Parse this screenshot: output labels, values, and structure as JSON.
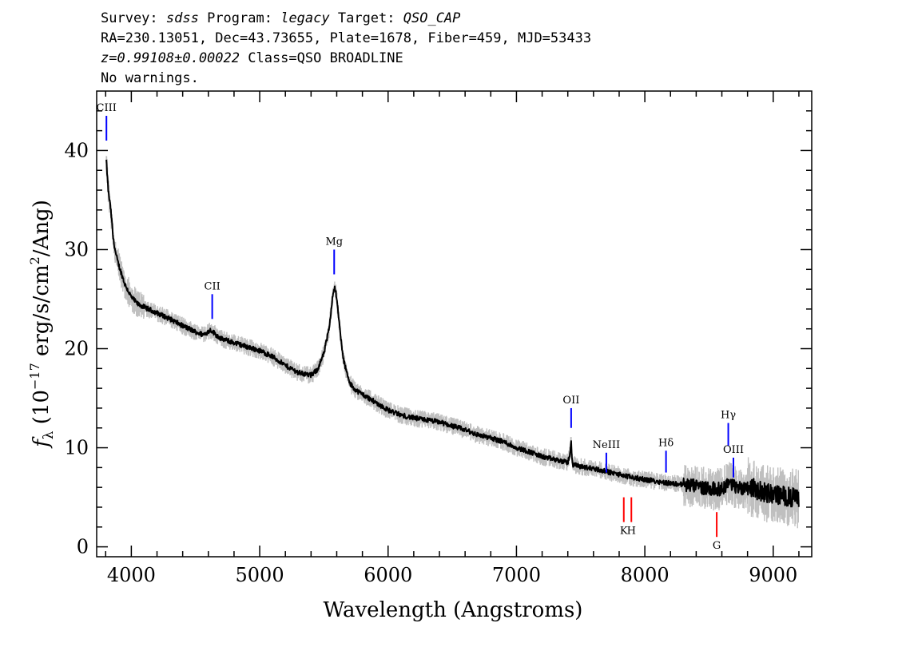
{
  "header": {
    "line1": {
      "survey_label": "Survey: ",
      "survey": "sdss",
      "program_label": " Program: ",
      "program": "legacy",
      "target_label": " Target: ",
      "target": "QSO_CAP"
    },
    "line2": "RA=230.13051, Dec=43.73655, Plate=1678, Fiber=459, MJD=53433",
    "line3": {
      "z": "z=0.99108±0.00022",
      "class": " Class=QSO BROADLINE"
    },
    "line4": "No warnings."
  },
  "chart_data": {
    "type": "line",
    "xlabel": "Wavelength (Angstroms)",
    "ylabel": {
      "prefix": "f",
      "sub": "λ",
      "open": " (10",
      "exp": "−17",
      "mid": " erg/s/cm",
      "exp2": "2",
      "close": "/Ang)"
    },
    "xlim": [
      3730,
      9300
    ],
    "ylim": [
      -1,
      46
    ],
    "x_ticks": [
      4000,
      5000,
      6000,
      7000,
      8000,
      9000
    ],
    "y_ticks": [
      0,
      10,
      20,
      30,
      40
    ],
    "x_tick_labels": [
      "4000",
      "5000",
      "6000",
      "7000",
      "8000",
      "9000"
    ],
    "y_tick_labels": [
      "0",
      "10",
      "20",
      "30",
      "40"
    ],
    "grid": false,
    "series": [
      {
        "role": "flux",
        "color": "#000000",
        "points": [
          [
            3805,
            39
          ],
          [
            3820,
            36
          ],
          [
            3840,
            34
          ],
          [
            3860,
            31
          ],
          [
            3880,
            29.5
          ],
          [
            3900,
            28.5
          ],
          [
            3950,
            26.5
          ],
          [
            4000,
            25.2
          ],
          [
            4050,
            24.5
          ],
          [
            4100,
            24.2
          ],
          [
            4200,
            23.6
          ],
          [
            4300,
            23.0
          ],
          [
            4400,
            22.3
          ],
          [
            4500,
            21.7
          ],
          [
            4560,
            21.4
          ],
          [
            4620,
            21.9
          ],
          [
            4660,
            21.4
          ],
          [
            4700,
            21.0
          ],
          [
            4800,
            20.6
          ],
          [
            4900,
            20.2
          ],
          [
            5000,
            19.8
          ],
          [
            5100,
            19.2
          ],
          [
            5200,
            18.3
          ],
          [
            5300,
            17.6
          ],
          [
            5400,
            17.3
          ],
          [
            5450,
            17.9
          ],
          [
            5500,
            19.5
          ],
          [
            5540,
            22.0
          ],
          [
            5570,
            25.5
          ],
          [
            5585,
            26.3
          ],
          [
            5600,
            25.0
          ],
          [
            5620,
            22.5
          ],
          [
            5650,
            19.0
          ],
          [
            5700,
            16.5
          ],
          [
            5750,
            15.8
          ],
          [
            5800,
            15.4
          ],
          [
            5900,
            14.6
          ],
          [
            6000,
            13.8
          ],
          [
            6100,
            13.3
          ],
          [
            6200,
            13.0
          ],
          [
            6300,
            12.8
          ],
          [
            6400,
            12.6
          ],
          [
            6500,
            12.2
          ],
          [
            6600,
            11.8
          ],
          [
            6700,
            11.3
          ],
          [
            6800,
            11.0
          ],
          [
            6900,
            10.6
          ],
          [
            7000,
            10.0
          ],
          [
            7100,
            9.6
          ],
          [
            7200,
            9.1
          ],
          [
            7300,
            8.8
          ],
          [
            7400,
            8.5
          ],
          [
            7420,
            9.5
          ],
          [
            7425,
            11.0
          ],
          [
            7430,
            9.2
          ],
          [
            7440,
            8.3
          ],
          [
            7500,
            8.1
          ],
          [
            7600,
            7.9
          ],
          [
            7700,
            7.6
          ],
          [
            7800,
            7.3
          ],
          [
            7900,
            7.0
          ],
          [
            8000,
            6.8
          ],
          [
            8100,
            6.6
          ],
          [
            8200,
            6.4
          ],
          [
            8300,
            6.3
          ],
          [
            8400,
            6.1
          ],
          [
            8500,
            5.9
          ],
          [
            8600,
            5.8
          ],
          [
            8650,
            6.5
          ],
          [
            8700,
            6.1
          ],
          [
            8750,
            5.9
          ],
          [
            8800,
            6.2
          ],
          [
            8900,
            5.6
          ],
          [
            9000,
            5.3
          ],
          [
            9100,
            5.1
          ],
          [
            9200,
            4.8
          ]
        ]
      },
      {
        "role": "noise-envelope",
        "color": "#bfbfbf"
      }
    ],
    "annotations": [
      {
        "label": "CIII",
        "x": 3806,
        "y0": 41.0,
        "y1": 43.5,
        "color": "#0000ff"
      },
      {
        "label": "CII",
        "x": 4630,
        "y0": 23.0,
        "y1": 25.5,
        "color": "#0000ff"
      },
      {
        "label": "Mg",
        "x": 5580,
        "y0": 27.5,
        "y1": 30.0,
        "color": "#0000ff"
      },
      {
        "label": "OII",
        "x": 7426,
        "y0": 12.0,
        "y1": 14.0,
        "color": "#0000ff"
      },
      {
        "label": "NeIII",
        "x": 7700,
        "y0": 7.5,
        "y1": 9.5,
        "color": "#0000ff"
      },
      {
        "label": "Hδ",
        "x": 8165,
        "y0": 7.5,
        "y1": 9.7,
        "color": "#0000ff"
      },
      {
        "label": "Hγ",
        "x": 8650,
        "y0": 10.2,
        "y1": 12.5,
        "color": "#0000ff"
      },
      {
        "label": "OIII",
        "x": 8690,
        "y0": 7.0,
        "y1": 9.0,
        "color": "#0000ff"
      },
      {
        "label": "K",
        "x": 7836,
        "y0": 2.5,
        "y1": 5.0,
        "color": "#ff0000",
        "below": true
      },
      {
        "label": "H",
        "x": 7895,
        "y0": 2.5,
        "y1": 5.0,
        "color": "#ff0000",
        "below": true
      },
      {
        "label": "G",
        "x": 8560,
        "y0": 1.0,
        "y1": 3.5,
        "color": "#ff0000",
        "below": true
      }
    ]
  }
}
